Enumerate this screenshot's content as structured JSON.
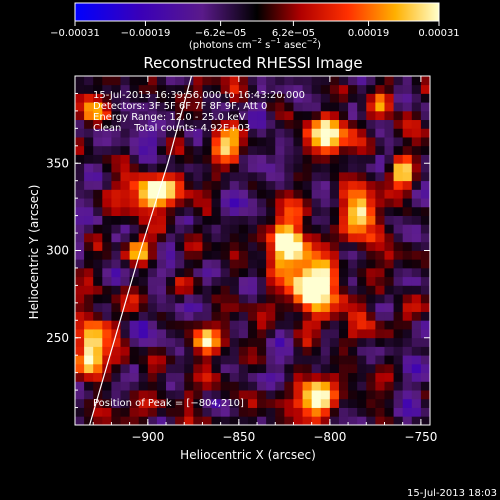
{
  "chart_data": {
    "type": "heatmap",
    "title": "Reconstructed RHESSI Image",
    "xlabel": "Heliocentric X (arcsec)",
    "ylabel": "Heliocentric Y (arcsec)",
    "xlim": [
      -940,
      -745
    ],
    "ylim": [
      200,
      400
    ],
    "xticks": [
      -900,
      -850,
      -800,
      -750
    ],
    "xtick_labels": [
      "−900",
      "−850",
      "−800",
      "−750"
    ],
    "yticks": [
      250,
      300,
      350
    ],
    "ytick_labels": [
      "250",
      "300",
      "350"
    ],
    "colorbar": {
      "range": [
        -0.00031,
        0.00031
      ],
      "ticks": [
        -0.00031,
        -0.00019,
        -6.2e-05,
        6.2e-05,
        0.00019,
        0.00031
      ],
      "tick_labels": [
        "−0.00031",
        "−0.00019",
        "−6.2e−05",
        "6.2e−05",
        "0.00019",
        "0.00031"
      ],
      "units_main": "(photons cm",
      "units_sup1": "−2",
      "units_mid": " s",
      "units_sup2": "−1",
      "units_mid2": " asec",
      "units_sup3": "−2",
      "units_end": ")"
    },
    "annotations": [
      "15-Jul-2013 16:39:56.000 to 16:43:20.000",
      "Detectors: 3F 5F 6F 7F 8F 9F, Att 0",
      "Energy Range: 12.0 - 25.0 keV",
      "Clean    Total counts: 4.92E+03"
    ],
    "peak_label": "Position of Peak = [−804,210]",
    "peak": [
      -804,
      210
    ],
    "limb_curve": [
      [
        -932,
        200
      ],
      [
        -918,
        250
      ],
      [
        -904,
        300
      ],
      [
        -889,
        350
      ],
      [
        -876,
        400
      ]
    ],
    "hot_spots": [
      {
        "x": -808,
        "y": 215,
        "amp": 1.0,
        "sx": 7,
        "sy": 9
      },
      {
        "x": -810,
        "y": 282,
        "amp": 0.95,
        "sx": 9,
        "sy": 14
      },
      {
        "x": -825,
        "y": 305,
        "amp": 0.8,
        "sx": 6,
        "sy": 10
      },
      {
        "x": -932,
        "y": 245,
        "amp": 0.95,
        "sx": 6,
        "sy": 12
      },
      {
        "x": -898,
        "y": 333,
        "amp": 0.85,
        "sx": 12,
        "sy": 7
      },
      {
        "x": -783,
        "y": 320,
        "amp": 0.8,
        "sx": 7,
        "sy": 11
      },
      {
        "x": -760,
        "y": 345,
        "amp": 0.7,
        "sx": 5,
        "sy": 8
      },
      {
        "x": -800,
        "y": 368,
        "amp": 0.65,
        "sx": 9,
        "sy": 8
      },
      {
        "x": -868,
        "y": 248,
        "amp": 0.75,
        "sx": 6,
        "sy": 6
      },
      {
        "x": -855,
        "y": 360,
        "amp": 0.7,
        "sx": 6,
        "sy": 9
      },
      {
        "x": -772,
        "y": 385,
        "amp": 0.65,
        "sx": 6,
        "sy": 6
      },
      {
        "x": -928,
        "y": 378,
        "amp": 0.6,
        "sx": 6,
        "sy": 6
      },
      {
        "x": -905,
        "y": 300,
        "amp": 0.55,
        "sx": 5,
        "sy": 5
      }
    ]
  },
  "footer": {
    "timestamp": "15-Jul-2013 18:03"
  }
}
